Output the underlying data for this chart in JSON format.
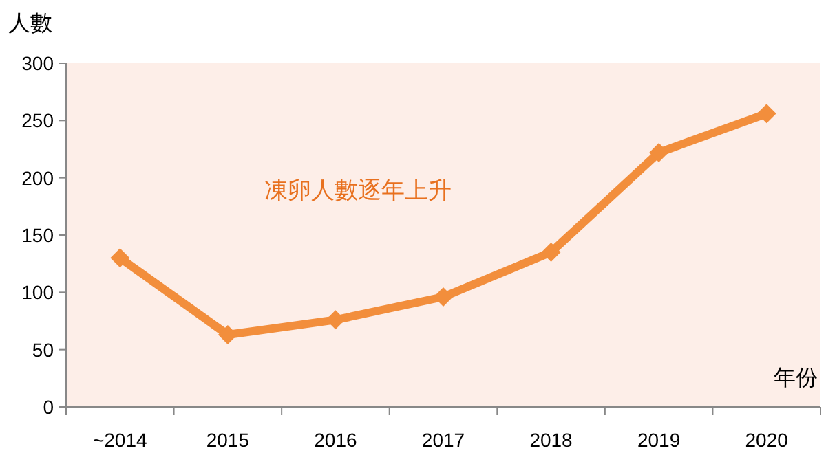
{
  "chart_data": {
    "type": "line",
    "ylabel": "人數",
    "xlabel": "年份",
    "annotations": [
      "凍卵人數逐年上升"
    ],
    "categories": [
      "~2014",
      "2015",
      "2016",
      "2017",
      "2018",
      "2019",
      "2020"
    ],
    "series": [
      {
        "color": "#f28e3c",
        "values": [
          130,
          63,
          76,
          96,
          135,
          222,
          256
        ]
      }
    ],
    "ylim": [
      0,
      300
    ],
    "yticks": [
      0,
      50,
      100,
      150,
      200,
      250,
      300
    ],
    "marker": "diamond",
    "line_style": "solid",
    "grid": false
  }
}
